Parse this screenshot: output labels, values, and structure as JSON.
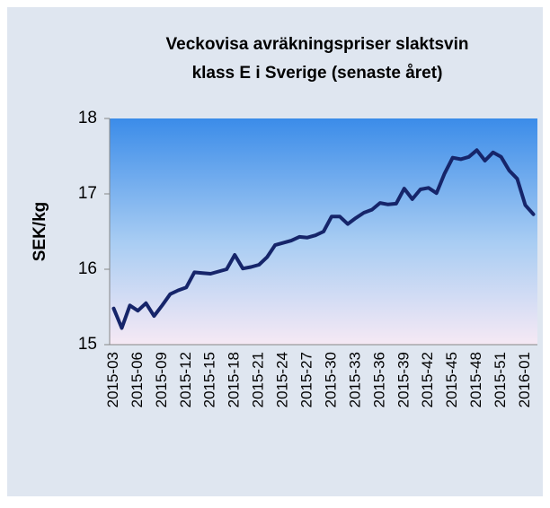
{
  "chart_data": {
    "type": "line",
    "title": [
      "Veckovisa avräkningspriser slaktsvin",
      "klass E i Sverige (senaste året)"
    ],
    "y_label": "SEK/kg",
    "categories": [
      "2015-03",
      null,
      null,
      "2015-06",
      null,
      null,
      "2015-09",
      null,
      null,
      "2015-12",
      null,
      null,
      "2015-15",
      null,
      null,
      "2015-18",
      null,
      null,
      "2015-21",
      null,
      null,
      "2015-24",
      null,
      null,
      "2015-27",
      null,
      null,
      "2015-30",
      null,
      null,
      "2015-33",
      null,
      null,
      "2015-36",
      null,
      null,
      "2015-39",
      null,
      null,
      "2015-42",
      null,
      null,
      "2015-45",
      null,
      null,
      "2015-48",
      null,
      null,
      "2015-51",
      null,
      null,
      "2016-01",
      null
    ],
    "series": [
      {
        "name": "SEK/kg",
        "color": "#16256a",
        "values": [
          15.48,
          15.22,
          15.52,
          15.45,
          15.55,
          15.38,
          15.52,
          15.67,
          15.72,
          15.76,
          15.96,
          15.95,
          15.94,
          15.97,
          16.0,
          16.19,
          16.01,
          16.03,
          16.06,
          16.16,
          16.32,
          16.35,
          16.38,
          16.43,
          16.42,
          16.45,
          16.5,
          16.7,
          16.7,
          16.6,
          16.68,
          16.75,
          16.79,
          16.88,
          16.86,
          16.87,
          17.07,
          16.93,
          17.06,
          17.08,
          17.01,
          17.27,
          17.48,
          17.46,
          17.49,
          17.58,
          17.44,
          17.55,
          17.49,
          17.31,
          17.2,
          16.85,
          16.73
        ]
      }
    ],
    "ylim": [
      15,
      18
    ],
    "yticks": [
      15,
      16,
      17,
      18
    ],
    "grid": false
  }
}
